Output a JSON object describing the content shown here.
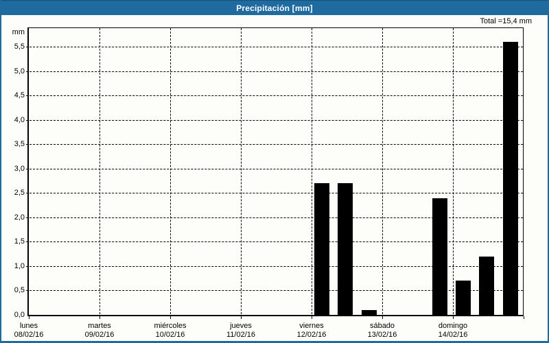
{
  "window": {
    "title": "Precipitación [mm]"
  },
  "header": {
    "total_label": "Total =15,4 mm"
  },
  "chart_data": {
    "type": "bar",
    "title": "Precipitación [mm]",
    "ylabel": "mm",
    "xlabel": "",
    "total_label": "Total =15,4 mm",
    "total": 15.4,
    "ylim": [
      0,
      5.9
    ],
    "ytick_step": 0.5,
    "ytick_labels": [
      "0,0",
      "0,5",
      "1,0",
      "1,5",
      "2,0",
      "2,5",
      "3,0",
      "3,5",
      "4,0",
      "4,5",
      "5,0",
      "5,5"
    ],
    "grid": "dashed",
    "legend": "none",
    "bar_color": "#000000",
    "accent_color": "#1f6a9f",
    "days": [
      {
        "name": "lunes",
        "date": "08/02/16"
      },
      {
        "name": "martes",
        "date": "09/02/16"
      },
      {
        "name": "miércoles",
        "date": "10/02/16"
      },
      {
        "name": "jueves",
        "date": "11/02/16"
      },
      {
        "name": "viernes",
        "date": "12/02/16"
      },
      {
        "name": "sábado",
        "date": "13/02/16"
      },
      {
        "name": "domingo",
        "date": "14/02/16"
      }
    ],
    "slots_per_day": 3,
    "values": [
      0,
      0,
      0,
      0,
      0,
      0,
      0,
      0,
      0,
      0,
      0,
      0,
      2.7,
      2.7,
      0.1,
      0,
      0,
      2.4,
      0.7,
      1.2,
      5.6
    ]
  }
}
